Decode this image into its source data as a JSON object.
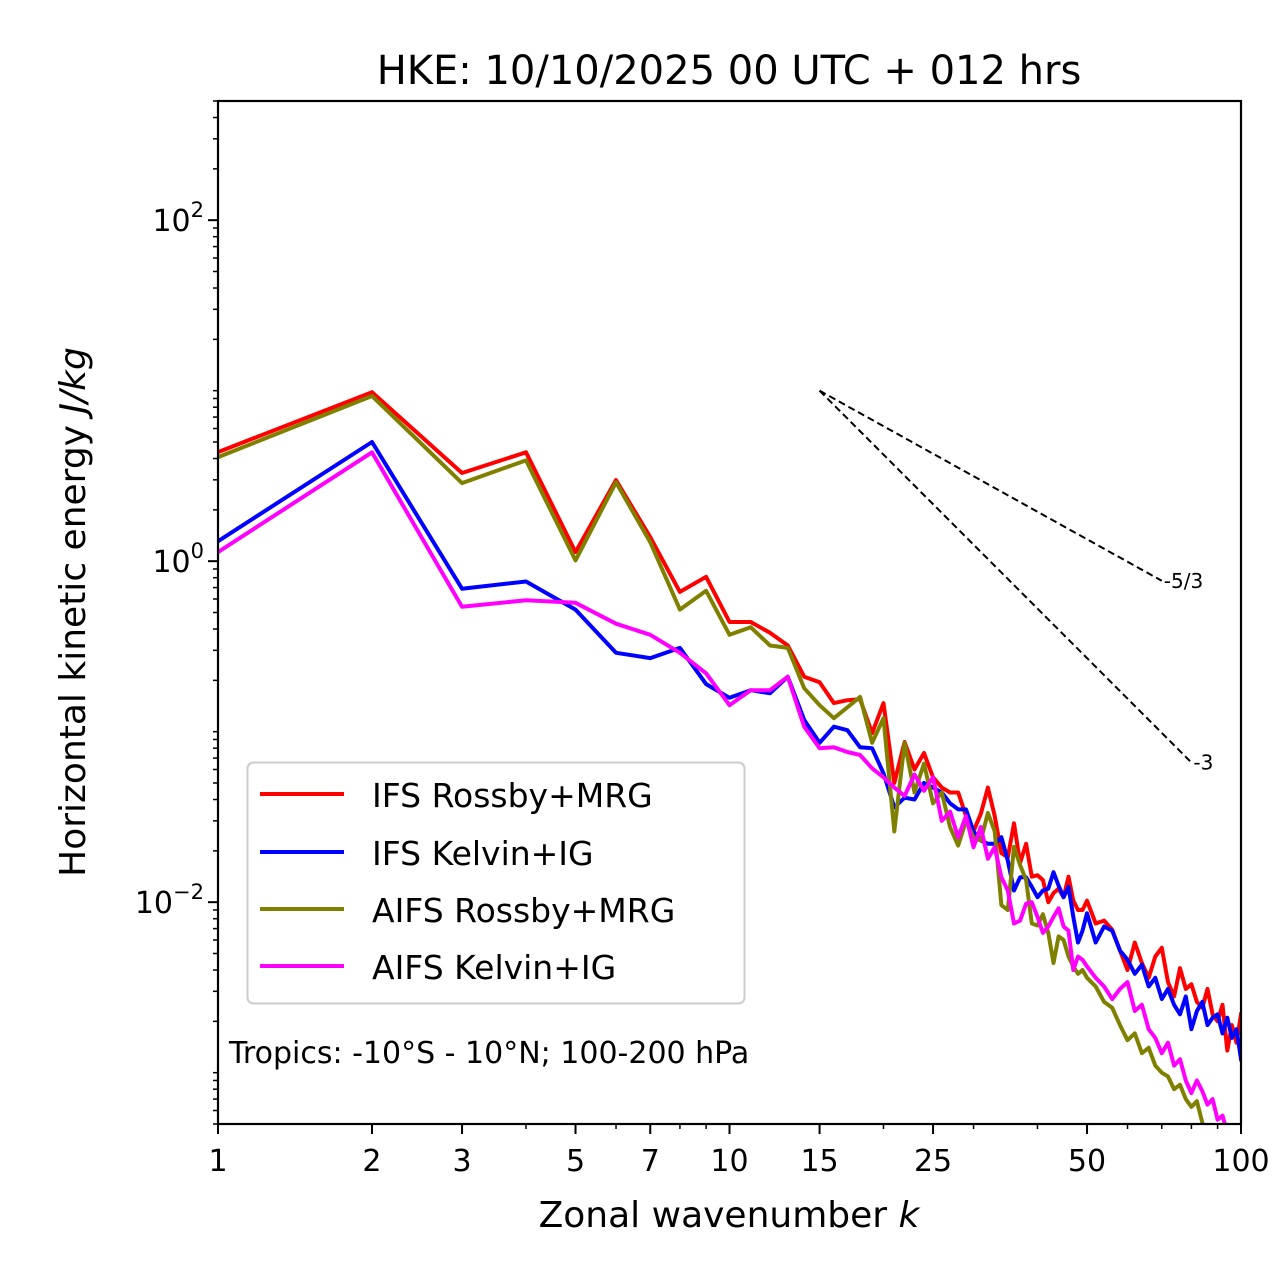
{
  "chart_data": {
    "type": "line",
    "title": "HKE: 10/10/2025 00 UTC + 012 hrs",
    "xlabel": "Zonal wavenumber k",
    "xlabel_parts": {
      "text": "Zonal wavenumber ",
      "italic": "k"
    },
    "ylabel": "Horizontal kinetic energy J/kg",
    "ylabel_parts": {
      "text": "Horizontal kinetic energy ",
      "italic": "J/kg"
    },
    "xscale": "log",
    "yscale": "log",
    "xlim": [
      1,
      100
    ],
    "ylim": [
      0.0005,
      500
    ],
    "grid": false,
    "x_ticks": [
      {
        "value": 1,
        "label": "1"
      },
      {
        "value": 2,
        "label": "2"
      },
      {
        "value": 3,
        "label": "3"
      },
      {
        "value": 5,
        "label": "5"
      },
      {
        "value": 7,
        "label": "7"
      },
      {
        "value": 10,
        "label": "10"
      },
      {
        "value": 15,
        "label": "15"
      },
      {
        "value": 25,
        "label": "25"
      },
      {
        "value": 50,
        "label": "50"
      },
      {
        "value": 100,
        "label": "100"
      }
    ],
    "x_minor_ticks": [
      4,
      6,
      8,
      9,
      20,
      30,
      40,
      60,
      70,
      80,
      90
    ],
    "y_ticks": [
      {
        "value": 0.01,
        "base": "10",
        "exp": "−2"
      },
      {
        "value": 1,
        "base": "10",
        "exp": "0"
      },
      {
        "value": 100,
        "base": "10",
        "exp": "2"
      }
    ],
    "legend": {
      "placement": "lower-left",
      "entries": [
        {
          "label": "IFS Rossby+MRG",
          "color": "#ff0000"
        },
        {
          "label": "IFS Kelvin+IG",
          "color": "#0000ff"
        },
        {
          "label": "AIFS Rossby+MRG",
          "color": "#808000"
        },
        {
          "label": "AIFS Kelvin+IG",
          "color": "#ff00ff"
        }
      ]
    },
    "annotation": "Tropics: -10°S - 10°N; 100-200 hPa",
    "reference_lines": [
      {
        "label": "-5/3",
        "slope": -1.6667,
        "x_start": 15,
        "y_start": 10,
        "x_end": 70,
        "style": "dashed",
        "color": "#000000"
      },
      {
        "label": "-3",
        "slope": -3,
        "x_start": 15,
        "y_start": 10,
        "x_end": 80,
        "style": "dashed",
        "color": "#000000"
      }
    ],
    "series": [
      {
        "name": "IFS Rossby+MRG",
        "color": "#ff0000",
        "x": [
          1,
          2,
          3,
          4,
          5,
          6,
          7,
          8,
          9,
          10,
          11,
          12,
          13,
          14,
          15,
          16,
          17,
          18,
          19,
          20,
          21,
          22,
          23,
          24,
          25,
          26,
          27,
          28,
          29,
          30,
          31,
          32,
          33,
          34,
          35,
          36,
          37,
          38,
          39,
          40,
          41,
          42,
          43,
          44,
          45,
          46,
          47,
          48,
          49,
          50,
          52,
          54,
          56,
          58,
          60,
          62,
          64,
          66,
          68,
          70,
          72,
          74,
          76,
          78,
          80,
          82,
          84,
          86,
          88,
          90,
          92,
          94,
          96,
          98,
          100
        ],
        "y": [
          4.36,
          9.8,
          3.29,
          4.35,
          1.13,
          2.99,
          1.38,
          0.66,
          0.81,
          0.44,
          0.44,
          0.38,
          0.32,
          0.21,
          0.195,
          0.147,
          0.153,
          0.155,
          0.098,
          0.147,
          0.05,
          0.087,
          0.06,
          0.075,
          0.054,
          0.047,
          0.044,
          0.044,
          0.032,
          0.026,
          0.033,
          0.047,
          0.032,
          0.0194,
          0.0183,
          0.029,
          0.017,
          0.022,
          0.0141,
          0.0144,
          0.0135,
          0.01,
          0.0113,
          0.012,
          0.0107,
          0.0141,
          0.0102,
          0.009,
          0.009,
          0.0102,
          0.0075,
          0.0078,
          0.0069,
          0.0052,
          0.004,
          0.0058,
          0.0044,
          0.0036,
          0.0048,
          0.0054,
          0.0034,
          0.0028,
          0.0041,
          0.0031,
          0.0033,
          0.0026,
          0.0024,
          0.0031,
          0.0022,
          0.002,
          0.0025,
          0.00135,
          0.0019,
          0.0015,
          0.0022
        ]
      },
      {
        "name": "IFS Kelvin+IG",
        "color": "#0000ff",
        "x": [
          1,
          2,
          3,
          4,
          5,
          6,
          7,
          8,
          9,
          10,
          11,
          12,
          13,
          14,
          15,
          16,
          17,
          18,
          19,
          20,
          21,
          22,
          23,
          24,
          25,
          26,
          27,
          28,
          29,
          30,
          31,
          32,
          33,
          34,
          35,
          36,
          37,
          38,
          39,
          40,
          41,
          42,
          43,
          44,
          45,
          46,
          47,
          48,
          49,
          50,
          52,
          54,
          56,
          58,
          60,
          62,
          64,
          66,
          68,
          70,
          72,
          74,
          76,
          78,
          80,
          82,
          84,
          86,
          88,
          90,
          92,
          94,
          96,
          98,
          100
        ],
        "y": [
          1.31,
          5.0,
          0.69,
          0.76,
          0.52,
          0.29,
          0.27,
          0.31,
          0.19,
          0.158,
          0.175,
          0.168,
          0.21,
          0.117,
          0.086,
          0.107,
          0.102,
          0.081,
          0.08,
          0.057,
          0.036,
          0.041,
          0.04,
          0.05,
          0.047,
          0.044,
          0.038,
          0.035,
          0.035,
          0.026,
          0.023,
          0.022,
          0.022,
          0.024,
          0.0175,
          0.0117,
          0.014,
          0.014,
          0.0123,
          0.0107,
          0.0117,
          0.012,
          0.015,
          0.0125,
          0.0107,
          0.0123,
          0.0082,
          0.0058,
          0.0068,
          0.0086,
          0.0058,
          0.0072,
          0.0068,
          0.0052,
          0.0046,
          0.0038,
          0.0043,
          0.0032,
          0.0036,
          0.0027,
          0.0031,
          0.0025,
          0.0022,
          0.0028,
          0.0018,
          0.0023,
          0.0026,
          0.0019,
          0.0021,
          0.0022,
          0.0017,
          0.0021,
          0.0016,
          0.0018,
          0.0012
        ]
      },
      {
        "name": "AIFS Rossby+MRG",
        "color": "#808000",
        "x": [
          1,
          2,
          3,
          4,
          5,
          6,
          7,
          8,
          9,
          10,
          11,
          12,
          13,
          14,
          15,
          16,
          17,
          18,
          19,
          20,
          21,
          22,
          23,
          24,
          25,
          26,
          27,
          28,
          29,
          30,
          31,
          32,
          33,
          34,
          35,
          36,
          37,
          38,
          39,
          40,
          41,
          42,
          43,
          44,
          45,
          46,
          47,
          48,
          49,
          50,
          52,
          54,
          56,
          58,
          60,
          62,
          64,
          66,
          68,
          70,
          72,
          74,
          76,
          78,
          80,
          82,
          84
        ],
        "y": [
          4.07,
          9.3,
          2.87,
          3.9,
          1.01,
          2.9,
          1.29,
          0.52,
          0.67,
          0.37,
          0.41,
          0.32,
          0.31,
          0.18,
          0.143,
          0.12,
          0.139,
          0.16,
          0.086,
          0.12,
          0.026,
          0.086,
          0.044,
          0.065,
          0.038,
          0.044,
          0.0275,
          0.0215,
          0.03,
          0.024,
          0.023,
          0.0334,
          0.026,
          0.0096,
          0.009,
          0.0211,
          0.0165,
          0.0135,
          0.0075,
          0.0073,
          0.0085,
          0.0066,
          0.0044,
          0.0063,
          0.006,
          0.0048,
          0.0042,
          0.0038,
          0.004,
          0.0036,
          0.0032,
          0.0026,
          0.0024,
          0.0019,
          0.00155,
          0.0017,
          0.0013,
          0.0014,
          0.0011,
          0.001,
          0.00095,
          0.0008,
          0.00085,
          0.0007,
          0.00063,
          0.00068,
          0.00051
        ]
      },
      {
        "name": "AIFS Kelvin+IG",
        "color": "#ff00ff",
        "x": [
          1,
          2,
          3,
          4,
          5,
          6,
          7,
          8,
          9,
          10,
          11,
          12,
          13,
          14,
          15,
          16,
          17,
          18,
          19,
          20,
          21,
          22,
          23,
          24,
          25,
          26,
          27,
          28,
          29,
          30,
          31,
          32,
          33,
          34,
          35,
          36,
          37,
          38,
          39,
          40,
          41,
          42,
          43,
          44,
          45,
          46,
          47,
          48,
          49,
          50,
          52,
          54,
          56,
          58,
          60,
          62,
          64,
          66,
          68,
          70,
          72,
          74,
          76,
          78,
          80,
          82,
          84,
          86,
          88,
          90,
          92,
          93
        ],
        "y": [
          1.13,
          4.35,
          0.54,
          0.59,
          0.57,
          0.43,
          0.37,
          0.29,
          0.22,
          0.143,
          0.175,
          0.175,
          0.21,
          0.107,
          0.08,
          0.081,
          0.076,
          0.073,
          0.061,
          0.054,
          0.047,
          0.042,
          0.056,
          0.045,
          0.054,
          0.03,
          0.034,
          0.024,
          0.032,
          0.021,
          0.0276,
          0.018,
          0.021,
          0.014,
          0.0117,
          0.0075,
          0.0078,
          0.0098,
          0.01,
          0.0082,
          0.0066,
          0.0072,
          0.0082,
          0.0092,
          0.0072,
          0.0068,
          0.004,
          0.0048,
          0.0046,
          0.0042,
          0.0036,
          0.0032,
          0.0027,
          0.0031,
          0.0034,
          0.0023,
          0.0025,
          0.0018,
          0.0016,
          0.0013,
          0.0015,
          0.0011,
          0.0012,
          0.0009,
          0.00076,
          0.0009,
          0.00078,
          0.00065,
          0.0007,
          0.00053,
          0.00056,
          0.0005
        ]
      }
    ]
  }
}
